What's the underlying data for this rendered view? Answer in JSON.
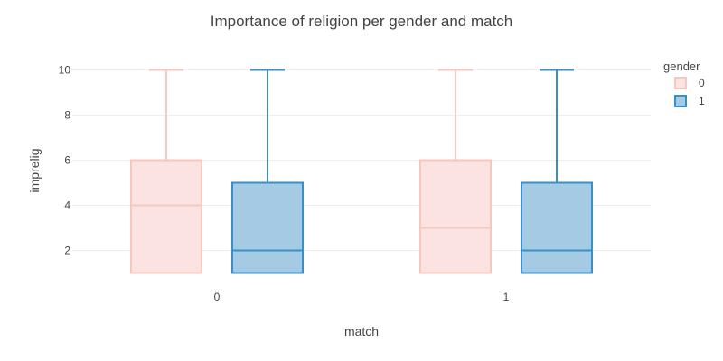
{
  "chart_data": {
    "type": "box",
    "title": "Importance of religion per gender and match",
    "xlabel": "match",
    "ylabel": "imprelig",
    "categories": [
      "0",
      "1"
    ],
    "ylim": [
      0.3,
      10.9
    ],
    "yticks": [
      2,
      4,
      6,
      8,
      10
    ],
    "grid": true,
    "legend": {
      "title": "gender",
      "position": "top-right"
    },
    "series": [
      {
        "name": "0",
        "line_color": "#f4c7bf",
        "fill_color": "#fbe3e1",
        "boxes": [
          {
            "category": "0",
            "min": 1,
            "q1": 1,
            "median": 4,
            "q3": 6,
            "max": 10
          },
          {
            "category": "1",
            "min": 1,
            "q1": 1,
            "median": 3,
            "q3": 6,
            "max": 10
          }
        ]
      },
      {
        "name": "1",
        "line_color": "#3a8fc6",
        "fill_color": "#a5cbe4",
        "boxes": [
          {
            "category": "0",
            "min": 1,
            "q1": 1,
            "median": 2,
            "q3": 5,
            "max": 10
          },
          {
            "category": "1",
            "min": 1,
            "q1": 1,
            "median": 2,
            "q3": 5,
            "max": 10
          }
        ]
      }
    ]
  }
}
